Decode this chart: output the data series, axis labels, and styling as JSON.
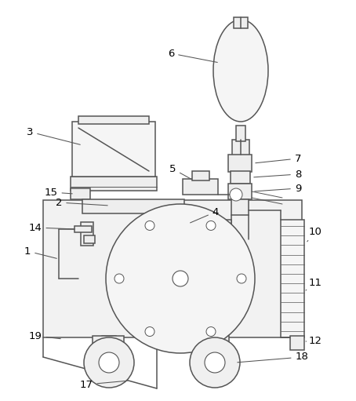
{
  "fig_width": 4.54,
  "fig_height": 5.11,
  "dpi": 100,
  "bg_color": "#ffffff",
  "line_color": "#555555",
  "lw": 1.1,
  "thin_lw": 0.7
}
